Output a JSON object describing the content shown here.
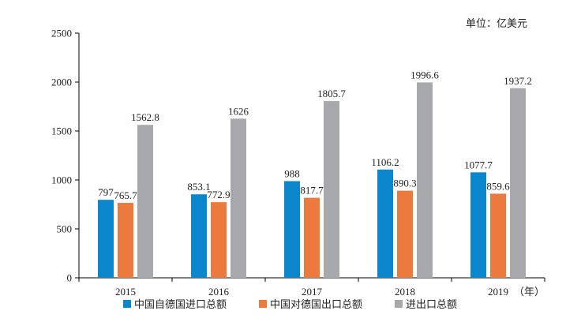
{
  "chart_data": {
    "type": "bar",
    "unit_label": "单位：亿美元",
    "x_suffix": "（年）",
    "categories": [
      "2015",
      "2016",
      "2017",
      "2018",
      "2019"
    ],
    "series": [
      {
        "name": "中国自德国进口总额",
        "color": "#0a86cc",
        "values": [
          797,
          853.1,
          988,
          1106.2,
          1077.7
        ],
        "labels": [
          "797",
          "853.1",
          "988",
          "1106.2",
          "1077.7"
        ]
      },
      {
        "name": "中国对德国出口总额",
        "color": "#ec7a3d",
        "values": [
          765.7,
          772.9,
          817.7,
          890.3,
          859.6
        ],
        "labels": [
          "765.7",
          "772.9",
          "817.7",
          "890.3",
          "859.6"
        ]
      },
      {
        "name": "进出口总额",
        "color": "#a6a8ab",
        "values": [
          1562.8,
          1626,
          1805.7,
          1996.6,
          1937.2
        ],
        "labels": [
          "1562.8",
          "1626",
          "1805.7",
          "1996.6",
          "1937.2"
        ]
      }
    ],
    "y_ticks": [
      "0",
      "500",
      "1000",
      "1500",
      "2000",
      "2500"
    ],
    "ylim": [
      0,
      2500
    ],
    "grid": false,
    "legend_position": "bottom"
  }
}
